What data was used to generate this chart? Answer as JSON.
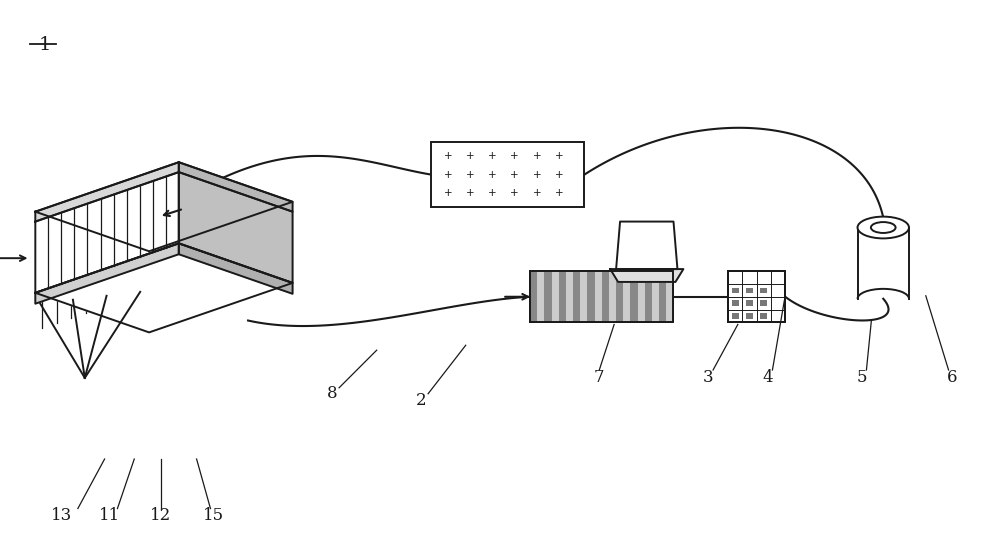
{
  "bg_color": "#ffffff",
  "line_color": "#1a1a1a",
  "label_1": "1",
  "label_2": "2",
  "label_3": "3",
  "label_4": "4",
  "label_5": "5",
  "label_6": "6",
  "label_7": "7",
  "label_8": "8",
  "label_11": "11",
  "label_12": "12",
  "label_13": "13",
  "label_15": "15"
}
